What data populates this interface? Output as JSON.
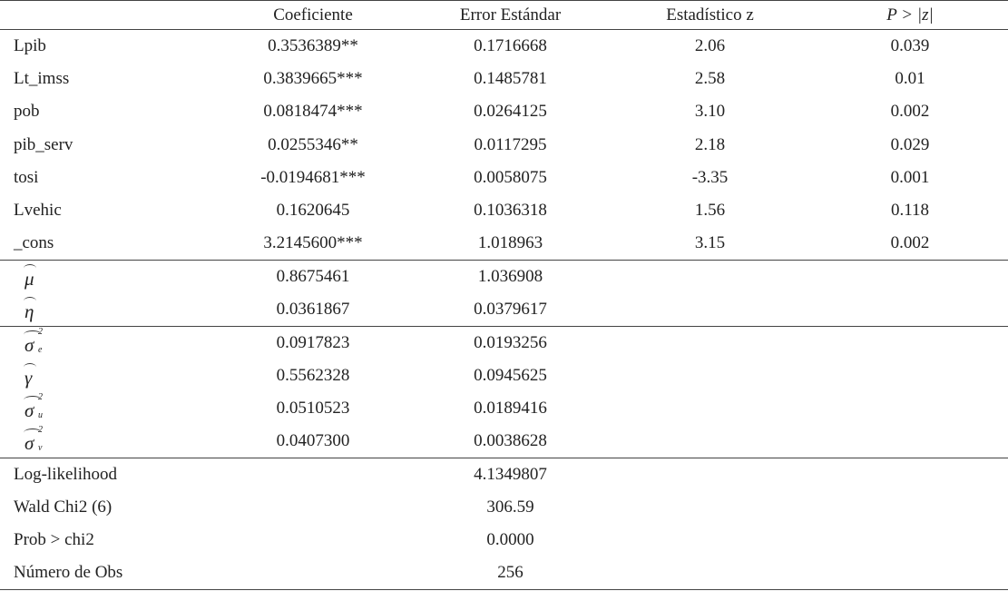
{
  "table": {
    "columns": [
      "Coeficiente",
      "Error Estándar",
      "Estadístico z",
      "P > |z|"
    ],
    "sections": [
      {
        "rows": [
          {
            "label": "Lpib",
            "coef": "0.3536389**",
            "se": "0.1716668",
            "z": "2.06",
            "p": "0.039"
          },
          {
            "label": "Lt_imss",
            "coef": "0.3839665***",
            "se": "0.1485781",
            "z": "2.58",
            "p": "0.01"
          },
          {
            "label": "pob",
            "coef": "0.0818474***",
            "se": "0.0264125",
            "z": "3.10",
            "p": "0.002"
          },
          {
            "label": "pib_serv",
            "coef": "0.0255346**",
            "se": "0.0117295",
            "z": "2.18",
            "p": "0.029"
          },
          {
            "label": "tosi",
            "coef": "-0.0194681***",
            "se": "0.0058075",
            "z": "-3.35",
            "p": "0.001"
          },
          {
            "label": "Lvehic",
            "coef": "0.1620645",
            "se": "0.1036318",
            "z": "1.56",
            "p": "0.118"
          },
          {
            "label": "_cons",
            "coef": "3.2145600***",
            "se": "1.018963",
            "z": "3.15",
            "p": "0.002"
          }
        ]
      },
      {
        "rows": [
          {
            "symbol": {
              "base": "μ"
            },
            "coef": "0.8675461",
            "se": "1.036908"
          },
          {
            "symbol": {
              "base": "η"
            },
            "coef": "0.0361867",
            "se": "0.0379617"
          }
        ]
      },
      {
        "rows": [
          {
            "symbol": {
              "base": "σ",
              "sub": "e",
              "sup": "2"
            },
            "coef": "0.0917823",
            "se": "0.0193256"
          },
          {
            "symbol": {
              "base": "γ"
            },
            "coef": "0.5562328",
            "se": "0.0945625"
          },
          {
            "symbol": {
              "base": "σ",
              "sub": "u",
              "sup": "2"
            },
            "coef": "0.0510523",
            "se": "0.0189416"
          },
          {
            "symbol": {
              "base": "σ",
              "sub": "v",
              "sup": "2"
            },
            "coef": "0.0407300",
            "se": "0.0038628"
          }
        ]
      },
      {
        "rows": [
          {
            "label": "Log-likelihood",
            "se": "4.1349807"
          },
          {
            "label": "Wald Chi2 (6)",
            "se": "306.59"
          },
          {
            "label": "Prob > chi2",
            "se": "0.0000"
          },
          {
            "label": "Número de Obs",
            "se": "256"
          }
        ]
      }
    ]
  }
}
